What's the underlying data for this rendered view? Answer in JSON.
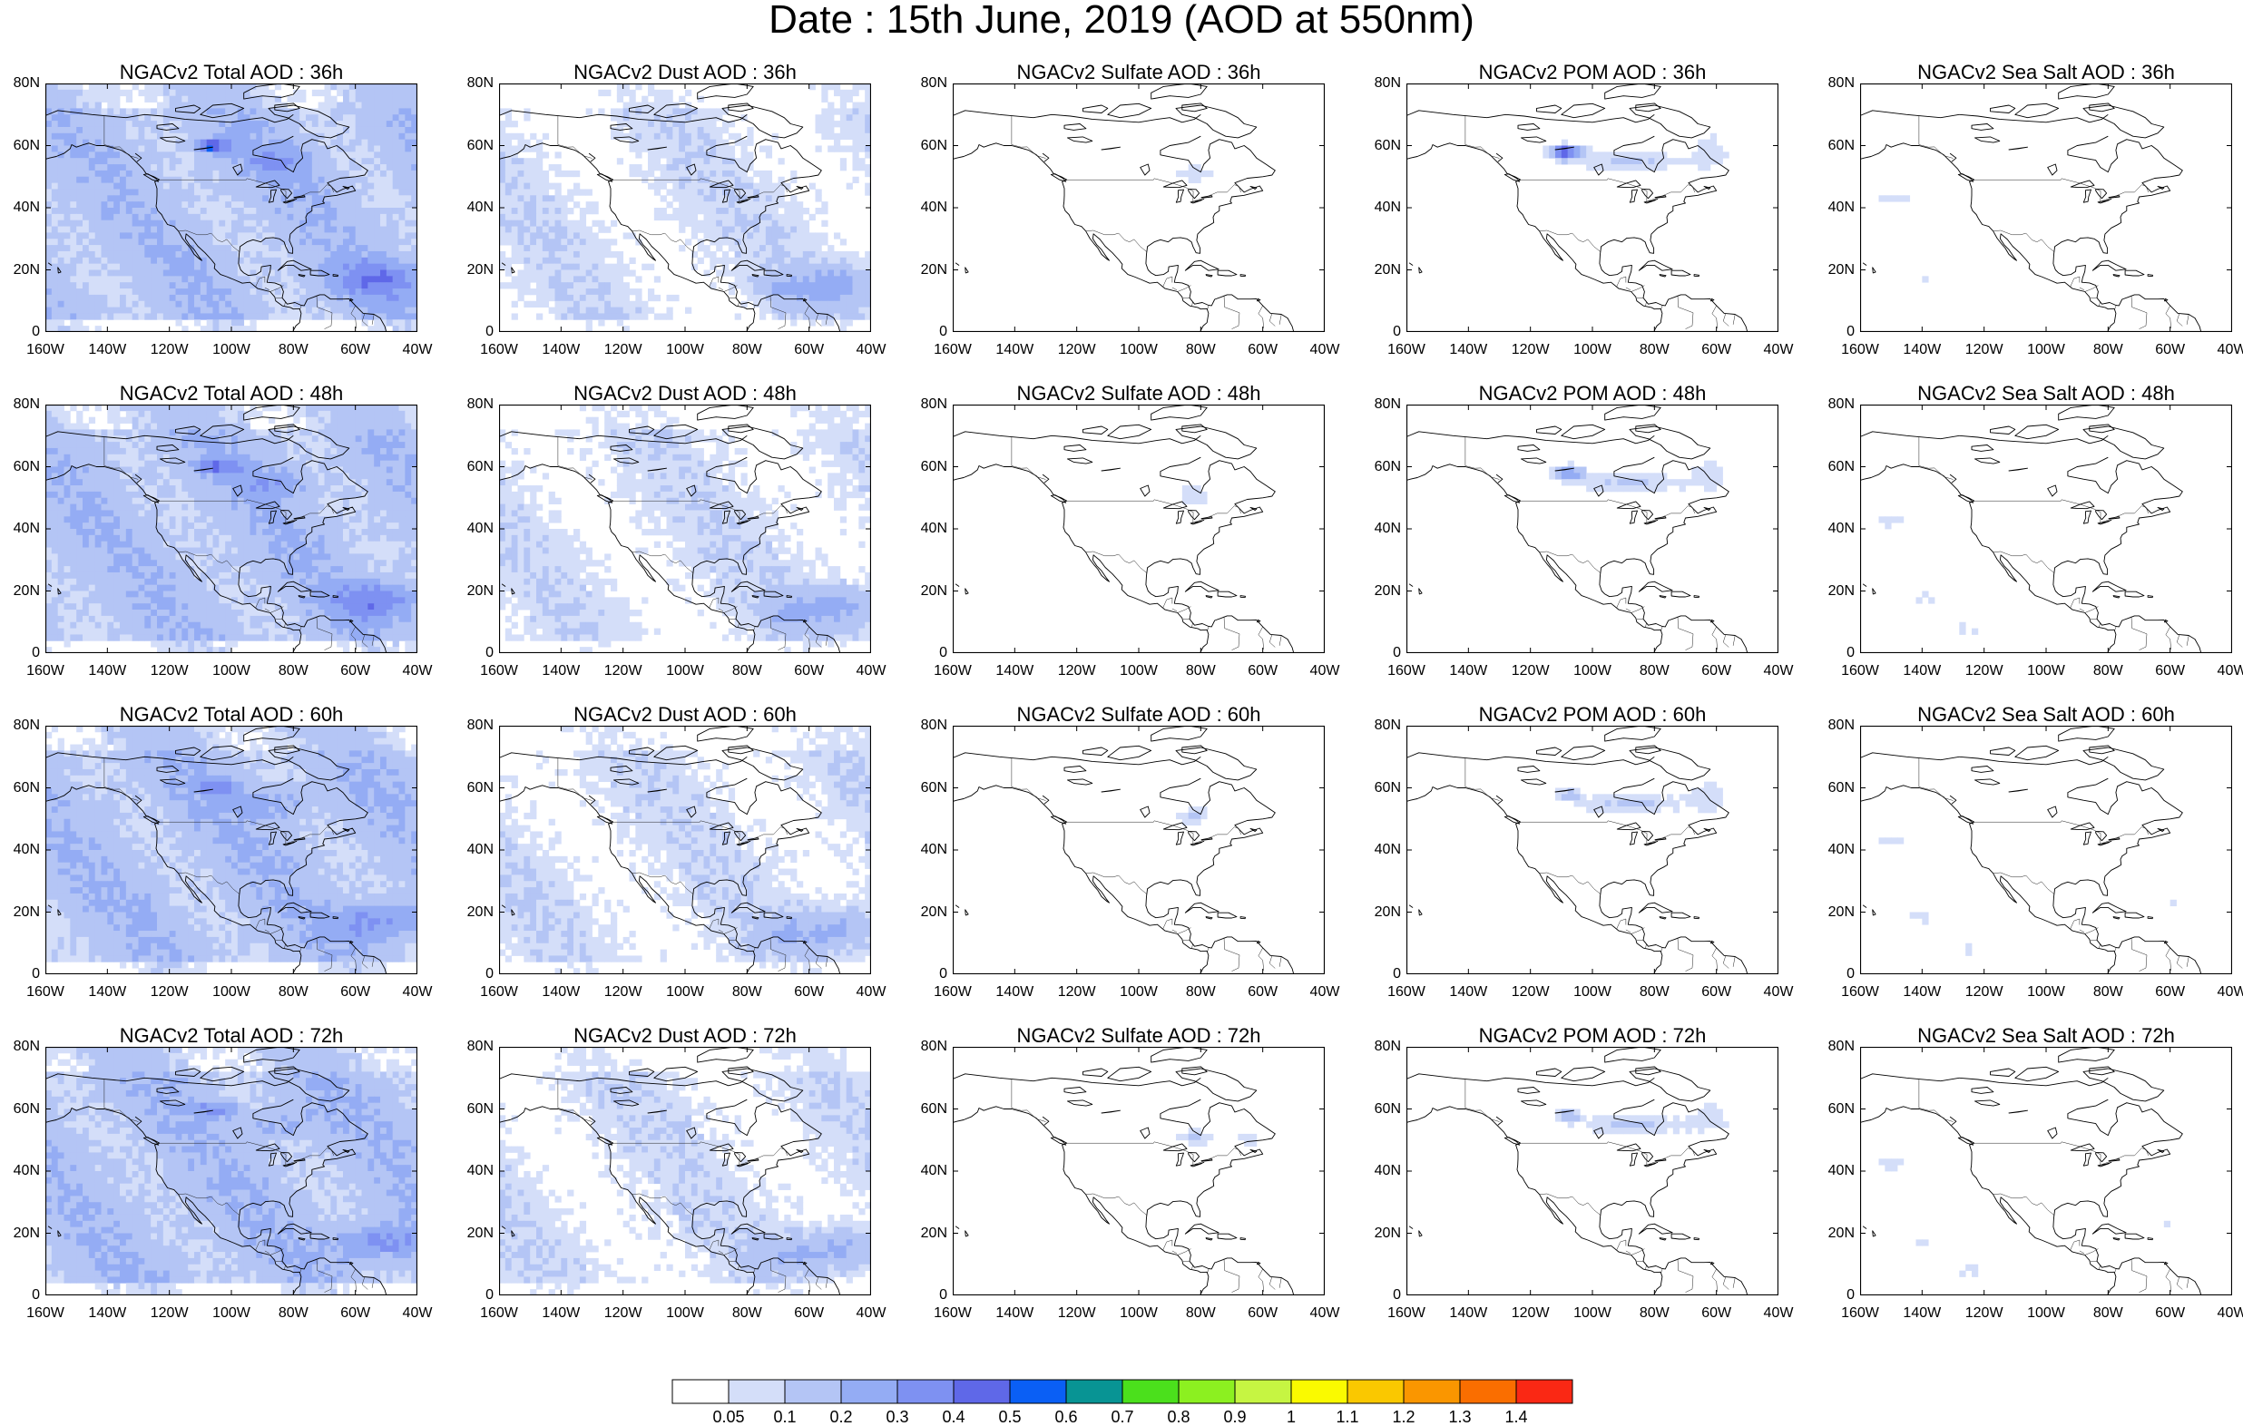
{
  "title": "Date : 15th June, 2019 (AOD at 550nm)",
  "x_ticks": [
    "160W",
    "140W",
    "120W",
    "100W",
    "80W",
    "60W",
    "40W"
  ],
  "y_ticks": [
    "80N",
    "60N",
    "40N",
    "20N",
    "0"
  ],
  "panels": [
    {
      "title": "NGACv2 Total AOD : 36h",
      "type": "total"
    },
    {
      "title": "NGACv2 Dust AOD : 36h",
      "type": "dust"
    },
    {
      "title": "NGACv2 Sulfate AOD : 36h",
      "type": "sulfate"
    },
    {
      "title": "NGACv2 POM AOD : 36h",
      "type": "pom"
    },
    {
      "title": "NGACv2 Sea Salt AOD : 36h",
      "type": "seasalt"
    },
    {
      "title": "NGACv2 Total AOD : 48h",
      "type": "total"
    },
    {
      "title": "NGACv2 Dust AOD : 48h",
      "type": "dust"
    },
    {
      "title": "NGACv2 Sulfate AOD : 48h",
      "type": "sulfate"
    },
    {
      "title": "NGACv2 POM AOD : 48h",
      "type": "pom"
    },
    {
      "title": "NGACv2 Sea Salt AOD : 48h",
      "type": "seasalt"
    },
    {
      "title": "NGACv2 Total AOD : 60h",
      "type": "total"
    },
    {
      "title": "NGACv2 Dust AOD : 60h",
      "type": "dust"
    },
    {
      "title": "NGACv2 Sulfate AOD : 60h",
      "type": "sulfate"
    },
    {
      "title": "NGACv2 POM AOD : 60h",
      "type": "pom"
    },
    {
      "title": "NGACv2 Sea Salt AOD : 60h",
      "type": "seasalt"
    },
    {
      "title": "NGACv2 Total AOD : 72h",
      "type": "total"
    },
    {
      "title": "NGACv2 Dust AOD : 72h",
      "type": "dust"
    },
    {
      "title": "NGACv2 Sulfate AOD : 72h",
      "type": "sulfate"
    },
    {
      "title": "NGACv2 POM AOD : 72h",
      "type": "pom"
    },
    {
      "title": "NGACv2 Sea Salt  AOD : 72h",
      "type": "seasalt"
    }
  ],
  "colorbar": {
    "colors": [
      "#ffffff",
      "#d4def9",
      "#b4c5f5",
      "#94acf4",
      "#7e91f2",
      "#5f68e8",
      "#0a5ff5",
      "#089494",
      "#4be01c",
      "#8cf020",
      "#c6f542",
      "#fafa00",
      "#fac800",
      "#fa9600",
      "#fa6e00",
      "#fa2814"
    ],
    "labels": [
      "0.05",
      "0.1",
      "0.2",
      "0.3",
      "0.4",
      "0.5",
      "0.6",
      "0.7",
      "0.8",
      "0.9",
      "1",
      "1.1",
      "1.2",
      "1.3",
      "1.4"
    ]
  }
}
